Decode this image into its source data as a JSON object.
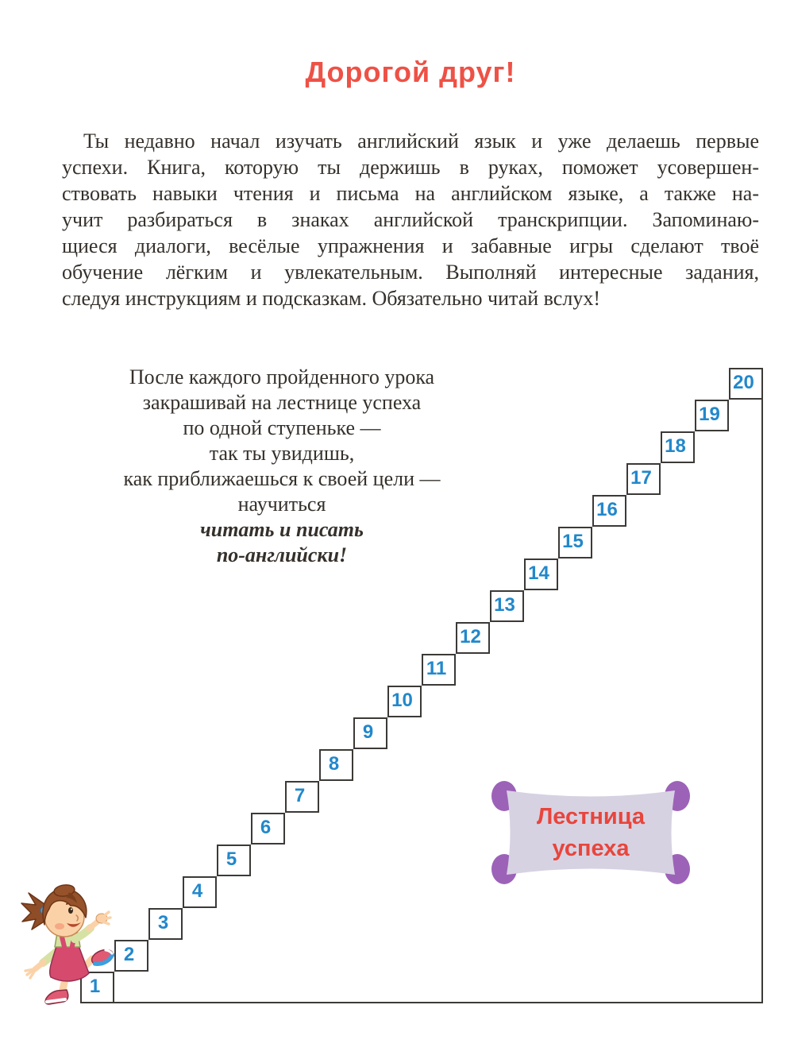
{
  "page": {
    "title": "Дорогой друг!"
  },
  "intro": {
    "lines": [
      "Ты недавно начал изучать английский язык и уже делаешь первые",
      "успехи. Книга, которую ты держишь в руках, поможет усовершен-",
      "ствовать навыки чтения и письма на английском языке, а также на-",
      "учит разбираться в знаках английской транскрипции. Запоминаю-",
      "щиеся диалоги, весёлые упражнения и забавные игры сделают твоё",
      "обучение лёгким и увлекательным. Выполняй интересные задания,",
      "следуя инструкциям и подсказкам. Обязательно читай вслух!"
    ]
  },
  "ladder_note": {
    "lines": [
      {
        "text": "После каждого пройденного урока",
        "emphasis": false
      },
      {
        "text": "закрашивай на лестнице успеха",
        "emphasis": false
      },
      {
        "text": "по одной ступеньке —",
        "emphasis": false
      },
      {
        "text": "так ты увидишь,",
        "emphasis": false
      },
      {
        "text": "как приближаешься к своей цели —",
        "emphasis": false
      },
      {
        "text": "научиться",
        "emphasis": false
      },
      {
        "text": "читать и писать",
        "emphasis": true
      },
      {
        "text": "по-английски!",
        "emphasis": true
      }
    ]
  },
  "staircase": {
    "steps": [
      1,
      2,
      3,
      4,
      5,
      6,
      7,
      8,
      9,
      10,
      11,
      12,
      13,
      14,
      15,
      16,
      17,
      18,
      19,
      20
    ]
  },
  "scroll": {
    "line1": "Лестница",
    "line2": "успеха"
  },
  "colors": {
    "title_red": "#ee5146",
    "step_number_blue": "#2288cb",
    "staircase_line": "#3c3a37",
    "scroll_body": "#d7d2e2",
    "scroll_curl": "#9c62b8",
    "scroll_text_red": "#e8453c"
  }
}
